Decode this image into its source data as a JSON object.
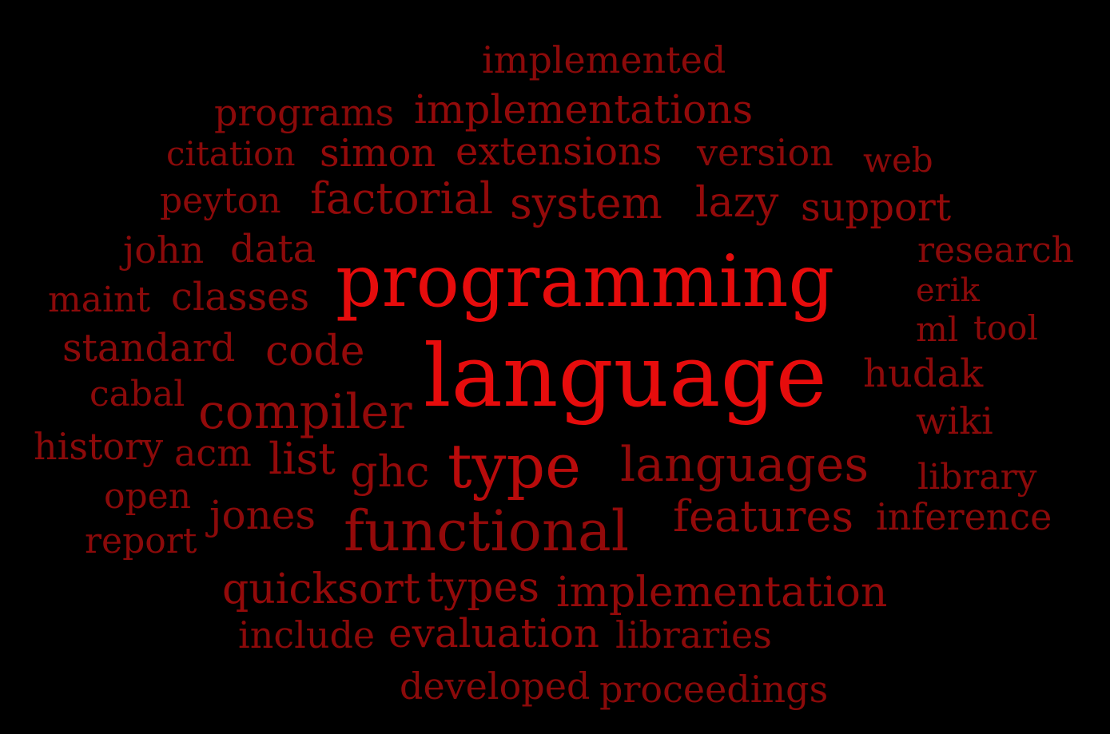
{
  "background_color": "#000000",
  "words": [
    {
      "text": "implemented",
      "color": "#8b0a0a"
    },
    {
      "text": "programs",
      "color": "#8b0a0a"
    },
    {
      "text": "implementations",
      "color": "#930a0a"
    },
    {
      "text": "citation",
      "color": "#8b0a0a"
    },
    {
      "text": "simon",
      "color": "#930a0a"
    },
    {
      "text": "extensions",
      "color": "#930a0a"
    },
    {
      "text": "version",
      "color": "#8b0a0a"
    },
    {
      "text": "web",
      "color": "#8b0a0a"
    },
    {
      "text": "peyton",
      "color": "#8b0a0a"
    },
    {
      "text": "factorial",
      "color": "#930a0a"
    },
    {
      "text": "system",
      "color": "#930a0a"
    },
    {
      "text": "lazy",
      "color": "#930a0a"
    },
    {
      "text": "support",
      "color": "#930a0a"
    },
    {
      "text": "john",
      "color": "#8b0a0a"
    },
    {
      "text": "data",
      "color": "#8b0a0a"
    },
    {
      "text": "research",
      "color": "#8b0a0a"
    },
    {
      "text": "programming",
      "color": "#e60c0c"
    },
    {
      "text": "maint",
      "color": "#8b0a0a"
    },
    {
      "text": "classes",
      "color": "#8b0a0a"
    },
    {
      "text": "erik",
      "color": "#8b0a0a"
    },
    {
      "text": "ml",
      "color": "#8b0a0a"
    },
    {
      "text": "tool",
      "color": "#8b0a0a"
    },
    {
      "text": "standard",
      "color": "#8b0a0a"
    },
    {
      "text": "code",
      "color": "#930a0a"
    },
    {
      "text": "language",
      "color": "#e60c0c"
    },
    {
      "text": "hudak",
      "color": "#8b0a0a"
    },
    {
      "text": "cabal",
      "color": "#8b0a0a"
    },
    {
      "text": "compiler",
      "color": "#930a0a"
    },
    {
      "text": "wiki",
      "color": "#8b0a0a"
    },
    {
      "text": "history",
      "color": "#8b0a0a"
    },
    {
      "text": "acm",
      "color": "#8b0a0a"
    },
    {
      "text": "list",
      "color": "#930a0a"
    },
    {
      "text": "ghc",
      "color": "#930a0a"
    },
    {
      "text": "type",
      "color": "#b80b0b"
    },
    {
      "text": "languages",
      "color": "#930a0a"
    },
    {
      "text": "library",
      "color": "#8b0a0a"
    },
    {
      "text": "open",
      "color": "#8b0a0a"
    },
    {
      "text": "jones",
      "color": "#8b0a0a"
    },
    {
      "text": "functional",
      "color": "#930a0a"
    },
    {
      "text": "features",
      "color": "#930a0a"
    },
    {
      "text": "inference",
      "color": "#8b0a0a"
    },
    {
      "text": "report",
      "color": "#8b0a0a"
    },
    {
      "text": "quicksort",
      "color": "#930a0a"
    },
    {
      "text": "types",
      "color": "#930a0a"
    },
    {
      "text": "implementation",
      "color": "#930a0a"
    },
    {
      "text": "include",
      "color": "#8b0a0a"
    },
    {
      "text": "evaluation",
      "color": "#930a0a"
    },
    {
      "text": "libraries",
      "color": "#8b0a0a"
    },
    {
      "text": "developed",
      "color": "#8b0a0a"
    },
    {
      "text": "proceedings",
      "color": "#8b0a0a"
    }
  ]
}
